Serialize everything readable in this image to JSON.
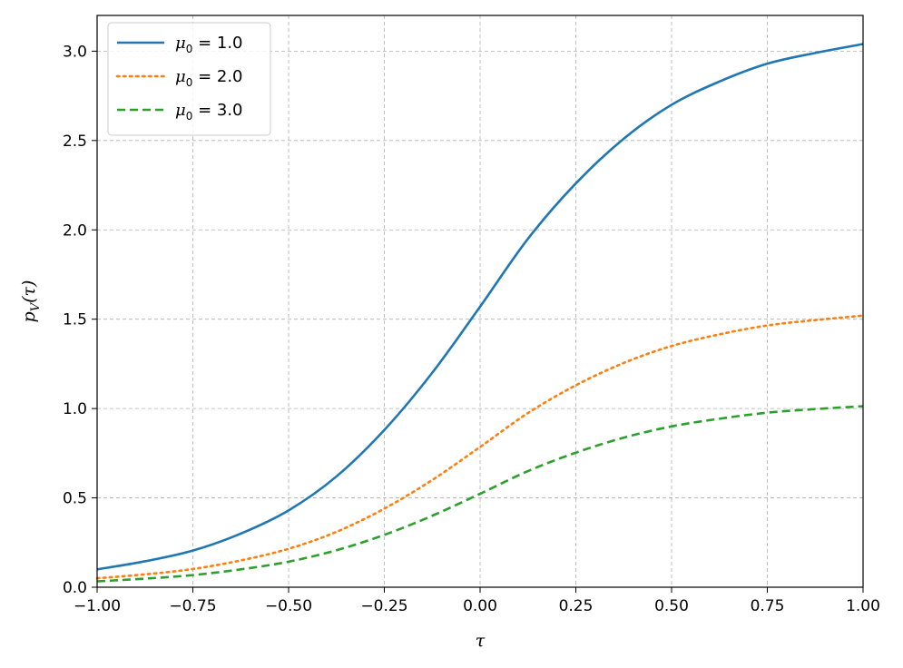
{
  "chart_data": {
    "type": "line",
    "title": "",
    "xlabel": "τ",
    "ylabel": "p_V(τ)",
    "xlim": [
      -1.0,
      1.0
    ],
    "ylim": [
      0.0,
      3.2
    ],
    "x_ticks": [
      -1.0,
      -0.75,
      -0.5,
      -0.25,
      0.0,
      0.25,
      0.5,
      0.75,
      1.0
    ],
    "x_tick_labels": [
      "−1.00",
      "−0.75",
      "−0.50",
      "−0.25",
      "0.00",
      "0.25",
      "0.50",
      "0.75",
      "1.00"
    ],
    "y_ticks": [
      0.0,
      0.5,
      1.0,
      1.5,
      2.0,
      2.5,
      3.0
    ],
    "y_tick_labels": [
      "0.0",
      "0.5",
      "1.0",
      "1.5",
      "2.0",
      "2.5",
      "3.0"
    ],
    "grid": true,
    "legend_position": "top-left",
    "x": [
      -1.0,
      -0.875,
      -0.75,
      -0.625,
      -0.5,
      -0.375,
      -0.25,
      -0.125,
      0.0,
      0.125,
      0.25,
      0.375,
      0.5,
      0.625,
      0.75,
      0.875,
      1.0
    ],
    "series": [
      {
        "name": "μ0 = 1.0",
        "color": "#1f77b4",
        "style": "solid",
        "values": [
          0.1,
          0.145,
          0.205,
          0.3,
          0.43,
          0.62,
          0.88,
          1.2,
          1.57,
          1.95,
          2.26,
          2.51,
          2.7,
          2.83,
          2.93,
          2.99,
          3.04
        ]
      },
      {
        "name": "μ0 = 2.0",
        "color": "#ff7f0e",
        "style": "dotted",
        "values": [
          0.05,
          0.072,
          0.102,
          0.15,
          0.215,
          0.31,
          0.44,
          0.6,
          0.785,
          0.975,
          1.13,
          1.255,
          1.35,
          1.415,
          1.465,
          1.495,
          1.52
        ]
      },
      {
        "name": "μ0 = 3.0",
        "color": "#2ca02c",
        "style": "dashed",
        "values": [
          0.033,
          0.048,
          0.068,
          0.1,
          0.143,
          0.207,
          0.293,
          0.4,
          0.523,
          0.65,
          0.753,
          0.837,
          0.9,
          0.943,
          0.977,
          0.997,
          1.013
        ]
      }
    ]
  },
  "legend": {
    "items": [
      {
        "symbol": "μ",
        "subscript": "0",
        "eq": " = 1.0"
      },
      {
        "symbol": "μ",
        "subscript": "0",
        "eq": " = 2.0"
      },
      {
        "symbol": "μ",
        "subscript": "0",
        "eq": " = 3.0"
      }
    ]
  },
  "axes": {
    "xlabel": "τ",
    "ylabel_main": "p",
    "ylabel_sub": "V",
    "ylabel_arg": "(τ)"
  }
}
